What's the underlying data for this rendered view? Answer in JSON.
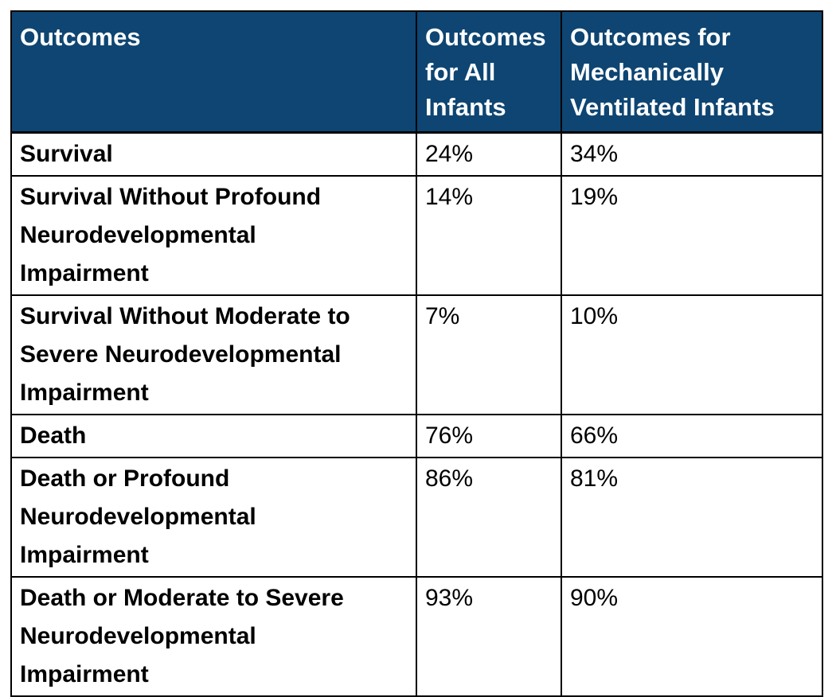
{
  "table": {
    "columns": [
      {
        "label": "Outcomes"
      },
      {
        "label": "Outcomes\nfor All\nInfants"
      },
      {
        "label": "Outcomes for\nMechanically\nVentilated Infants"
      }
    ],
    "rows": [
      {
        "outcome": "Survival",
        "all_infants": "24%",
        "ventilated": "34%"
      },
      {
        "outcome": "Survival Without Profound\nNeurodevelopmental\nImpairment",
        "all_infants": "14%",
        "ventilated": "19%"
      },
      {
        "outcome": "Survival Without Moderate to\nSevere Neurodevelopmental\nImpairment",
        "all_infants": "7%",
        "ventilated": "10%"
      },
      {
        "outcome": "Death",
        "all_infants": "76%",
        "ventilated": "66%"
      },
      {
        "outcome": "Death or Profound\nNeurodevelopmental\nImpairment",
        "all_infants": "86%",
        "ventilated": "81%"
      },
      {
        "outcome": "Death or Moderate to Severe\nNeurodevelopmental\nImpairment",
        "all_infants": "93%",
        "ventilated": "90%"
      }
    ],
    "colors": {
      "header_background": "#0e4572",
      "header_text": "#ffffff",
      "body_text": "#000000",
      "border": "#000000"
    }
  },
  "chart_data": {
    "type": "table",
    "title": "",
    "categories": [
      "Survival",
      "Survival Without Profound Neurodevelopmental Impairment",
      "Survival Without Moderate to Severe Neurodevelopmental Impairment",
      "Death",
      "Death or Profound Neurodevelopmental Impairment",
      "Death or Moderate to Severe Neurodevelopmental Impairment"
    ],
    "series": [
      {
        "name": "Outcomes for All Infants",
        "values": [
          24,
          14,
          7,
          76,
          86,
          93
        ]
      },
      {
        "name": "Outcomes for Mechanically Ventilated Infants",
        "values": [
          34,
          19,
          10,
          66,
          81,
          90
        ]
      }
    ],
    "value_unit": "%"
  }
}
